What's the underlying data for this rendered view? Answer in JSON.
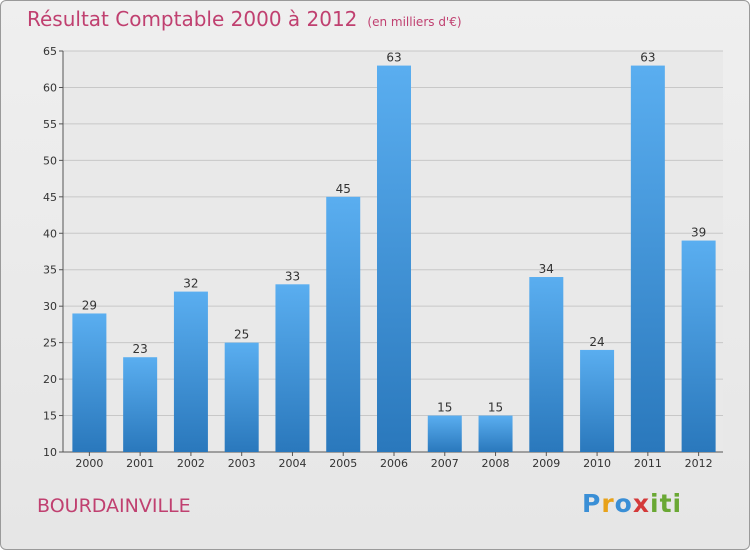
{
  "chart_data": {
    "type": "bar",
    "title": "Résultat Comptable 2000 à 2012",
    "unit_label": "(en milliers d'€)",
    "categories": [
      "2000",
      "2001",
      "2002",
      "2003",
      "2004",
      "2005",
      "2006",
      "2007",
      "2008",
      "2009",
      "2010",
      "2011",
      "2012"
    ],
    "values": [
      29,
      23,
      32,
      25,
      33,
      45,
      63,
      15,
      15,
      34,
      24,
      63,
      39
    ],
    "y_ticks": [
      10,
      15,
      20,
      25,
      30,
      35,
      40,
      45,
      50,
      55,
      60,
      65
    ],
    "ylim": [
      10,
      65
    ],
    "xlabel": "",
    "ylabel": "",
    "grid": true,
    "colors": {
      "bar_top": "#5aaef0",
      "bar_bottom": "#2a78bc",
      "grid": "#c8c8c8",
      "text": "#333333"
    }
  },
  "commune_name": "BOURDAINVILLE",
  "logo": {
    "letters": [
      "P",
      "r",
      "o",
      "x",
      "i",
      "ti"
    ]
  }
}
